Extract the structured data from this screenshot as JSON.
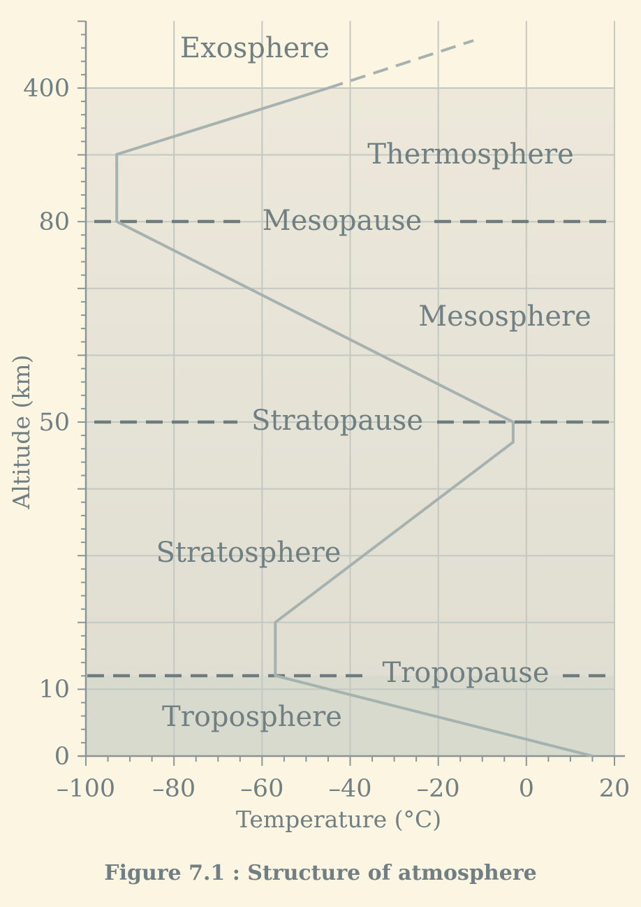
{
  "caption": "Figure 7.1 : Structure of atmosphere",
  "chart_data": {
    "type": "line",
    "xlabel": "Temperature (°C)",
    "ylabel": "Altitude (km)",
    "xlim": [
      -100,
      20
    ],
    "x_ticks": [
      "–100",
      "–80",
      "–60",
      "–40",
      "–20",
      "0",
      "20"
    ],
    "x_tick_values": [
      -100,
      -80,
      -60,
      -40,
      -20,
      0,
      20
    ],
    "y_ticks": [
      {
        "label": "0",
        "value": 0
      },
      {
        "label": "10",
        "value": 10
      },
      {
        "label": "50",
        "value": 50
      },
      {
        "label": "80",
        "value": 80
      },
      {
        "label": "400",
        "value": 400
      }
    ],
    "y_scale": "non-linear (broken)",
    "grid": true,
    "series": [
      {
        "points": [
          {
            "temp": 15,
            "alt": 0
          },
          {
            "temp": -57,
            "alt": 12
          },
          {
            "temp": -57,
            "alt": 20
          },
          {
            "temp": -3,
            "alt": 47
          },
          {
            "temp": -3,
            "alt": 50
          },
          {
            "temp": -93,
            "alt": 80
          },
          {
            "temp": -93,
            "alt": 90
          },
          {
            "temp": -45,
            "alt": 400
          }
        ],
        "extension": {
          "temp": -12,
          "alt": 500,
          "style": "dashed"
        }
      }
    ],
    "boundaries": [
      {
        "name": "Mesopause",
        "alt": 80
      },
      {
        "name": "Stratopause",
        "alt": 50
      },
      {
        "name": "Tropopause",
        "alt": 12
      }
    ],
    "layers": [
      "Exosphere",
      "Thermosphere",
      "Mesosphere",
      "Stratosphere",
      "Troposphere"
    ],
    "colors": {
      "page": "#fcf5e2",
      "plot_upper": "#ede8da",
      "plot_middle": "#e4e1d5",
      "plot_lower": "#d8dacd",
      "grid": "#c4c8c2",
      "curve": "#a6b2b0",
      "boundary_line": "#6e7c7f",
      "text": "#6f7f82"
    }
  }
}
